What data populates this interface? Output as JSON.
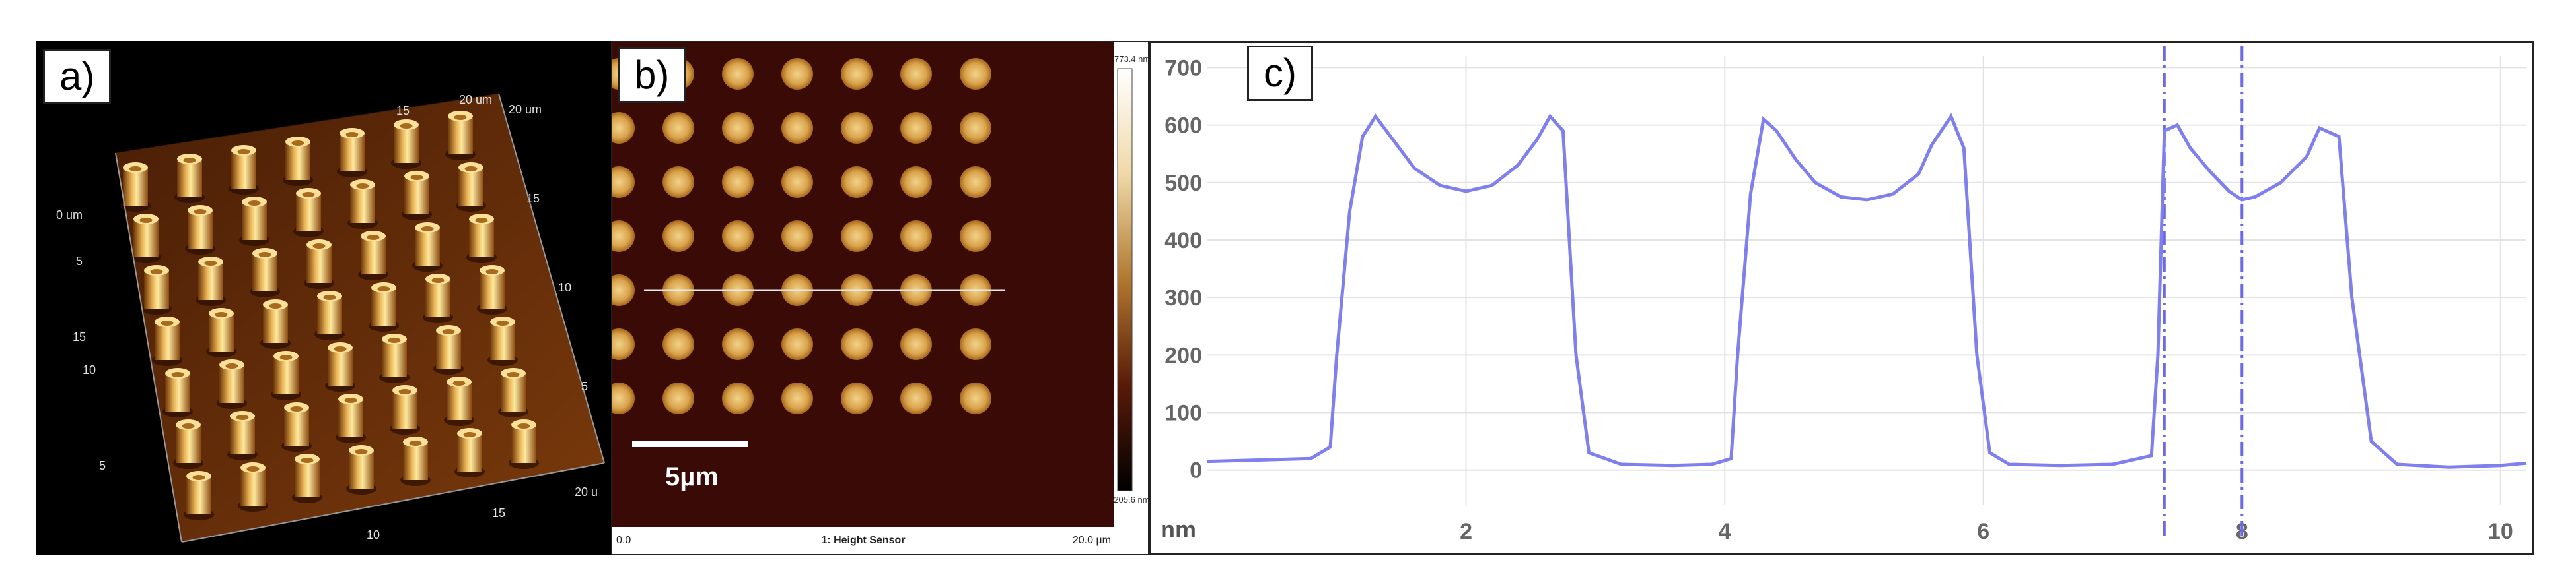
{
  "panels": {
    "a": {
      "label": "a)",
      "axis_ticks_left": [
        "0 um",
        "5",
        "10",
        "15",
        "5"
      ],
      "axis_ticks_back": [
        "20 um",
        "15",
        "20 um"
      ],
      "axis_ticks_right": [
        "15",
        "10",
        "5",
        "20 u"
      ],
      "axis_ticks_front": [
        "10",
        "15"
      ]
    },
    "b": {
      "label": "b)",
      "colorbar_max": "773.4 nm",
      "colorbar_min": "-205.6 nm",
      "footer_left": "0.0",
      "footer_center": "1: Height Sensor",
      "footer_right": "20.0 µm",
      "scalebar_label": "5µm",
      "colors": {
        "background": "#3a0a06",
        "dot_center": "#e8c880",
        "dot_edge": "#b27a2a",
        "line": "#e8e8e8"
      }
    },
    "c": {
      "label": "c)"
    }
  },
  "chart_data": {
    "type": "line",
    "title": "",
    "xlabel": "",
    "ylabel": "nm",
    "xlim": [
      0,
      10.2
    ],
    "ylim": [
      -60,
      720
    ],
    "yticks": [
      0,
      100,
      200,
      300,
      400,
      500,
      600,
      700
    ],
    "xticks": [
      2,
      4,
      6,
      8,
      10
    ],
    "grid": true,
    "line_color": "#7f80ee",
    "markers_x": [
      7.4,
      8.0
    ],
    "series": [
      {
        "x": [
          0,
          0.8,
          0.95,
          1.0,
          1.1,
          1.2,
          1.3,
          1.45,
          1.6,
          1.8,
          2.0,
          2.2,
          2.4,
          2.55,
          2.65,
          2.75,
          2.85,
          2.95,
          3.2,
          3.6,
          3.9,
          4.05,
          4.1,
          4.2,
          4.3,
          4.4,
          4.55,
          4.7,
          4.9,
          5.1,
          5.3,
          5.5,
          5.6,
          5.75,
          5.85,
          5.95,
          6.05,
          6.2,
          6.6,
          7.0,
          7.3,
          7.35,
          7.4,
          7.5,
          7.6,
          7.75,
          7.9,
          8.0,
          8.1,
          8.3,
          8.5,
          8.6,
          8.75,
          8.85,
          9.0,
          9.2,
          9.6,
          10.0,
          10.2
        ],
        "y": [
          15,
          20,
          40,
          200,
          450,
          580,
          615,
          570,
          525,
          495,
          485,
          495,
          530,
          575,
          615,
          590,
          200,
          30,
          10,
          8,
          10,
          20,
          200,
          480,
          610,
          590,
          540,
          500,
          475,
          470,
          480,
          515,
          565,
          615,
          560,
          200,
          30,
          10,
          8,
          10,
          25,
          200,
          590,
          600,
          560,
          520,
          485,
          470,
          475,
          500,
          545,
          595,
          580,
          300,
          50,
          10,
          5,
          8,
          12
        ]
      }
    ]
  }
}
